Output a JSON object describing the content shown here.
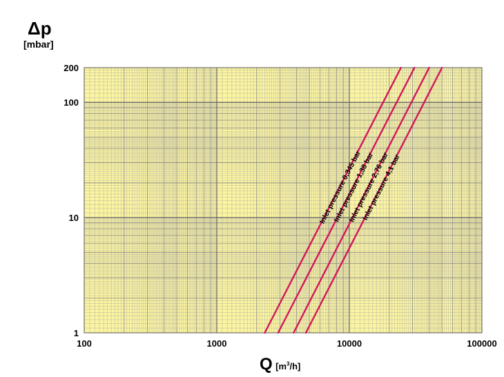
{
  "chart_data": {
    "type": "line",
    "title": "",
    "ylabel_symbol": "Δp",
    "ylabel_unit": "[mbar]",
    "xlabel_symbol": "Q",
    "xlabel_unit_prefix": "[m",
    "xlabel_unit_sup": "3",
    "xlabel_unit_suffix": "/h]",
    "x_scale": "log",
    "y_scale": "log",
    "xlim": [
      100,
      100000
    ],
    "ylim": [
      1,
      200
    ],
    "grid": true,
    "x_ticks": [
      "100",
      "1000",
      "10000",
      "100000"
    ],
    "y_ticks": [
      "1",
      "10",
      "100",
      "200"
    ],
    "series": [
      {
        "name": "Inlet pressure 0,345 bar",
        "x": [
          2300,
          24500
        ],
        "y": [
          1,
          200
        ]
      },
      {
        "name": "Inlet pressure 1,38 bar",
        "x": [
          2900,
          31000
        ],
        "y": [
          1,
          200
        ]
      },
      {
        "name": "Inlet pressure 2,76 bar",
        "x": [
          3800,
          40000
        ],
        "y": [
          1,
          200
        ]
      },
      {
        "name": "Inlet pressure 4,1 bar",
        "x": [
          4700,
          50000
        ],
        "y": [
          1,
          200
        ]
      }
    ],
    "colors": {
      "background": "#fbf4a0",
      "grid": "#a8a8a8",
      "series": "#d4145a"
    }
  }
}
